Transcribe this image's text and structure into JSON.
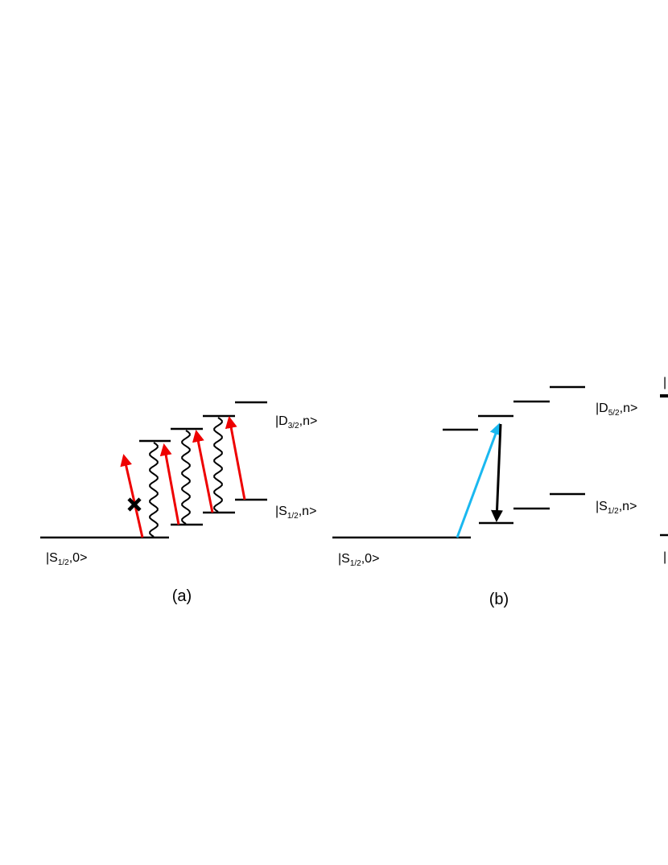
{
  "panel_a": {
    "caption": "(a)",
    "ground": {
      "prefix": "|S",
      "sub": "1/2",
      "suffix": ",0>"
    },
    "lower": {
      "prefix": "|S",
      "sub": "1/2",
      "suffix": ",n>"
    },
    "upper": {
      "prefix": "|D",
      "sub": "3/2",
      "suffix": ",n>"
    }
  },
  "panel_b": {
    "caption": "(b)",
    "ground": {
      "prefix": "|S",
      "sub": "1/2",
      "suffix": ",0>"
    },
    "lower": {
      "prefix": "|S",
      "sub": "1/2",
      "suffix": ",n>"
    },
    "upper": {
      "prefix": "|D",
      "sub": "5/2",
      "suffix": ",n>"
    }
  },
  "panel_c": {
    "top_fragment": "|",
    "bottom_fragment": "|"
  }
}
